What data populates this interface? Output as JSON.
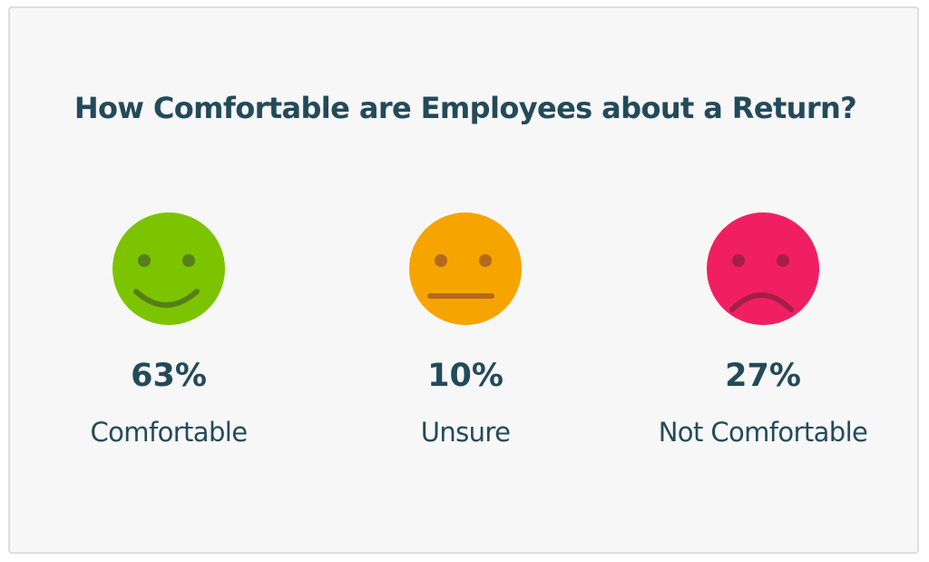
{
  "chart_data": {
    "type": "table",
    "title": "How Comfortable are Employees about a Return?",
    "categories": [
      "Comfortable",
      "Unsure",
      "Not Comfortable"
    ],
    "values": [
      63,
      10,
      27
    ],
    "value_labels": [
      "63%",
      "10%",
      "27%"
    ],
    "icons": [
      "smiling-face-icon",
      "neutral-face-icon",
      "frowning-face-icon"
    ],
    "colors": {
      "comfortable": "#7cc400",
      "unsure": "#f6a400",
      "not_comfortable": "#f01f63",
      "feature_comfortable": "#577f1a",
      "feature_unsure": "#b36a1d",
      "feature_not_comfortable": "#a51f45",
      "text": "#234a5a"
    },
    "grid": false,
    "legend": "none"
  }
}
